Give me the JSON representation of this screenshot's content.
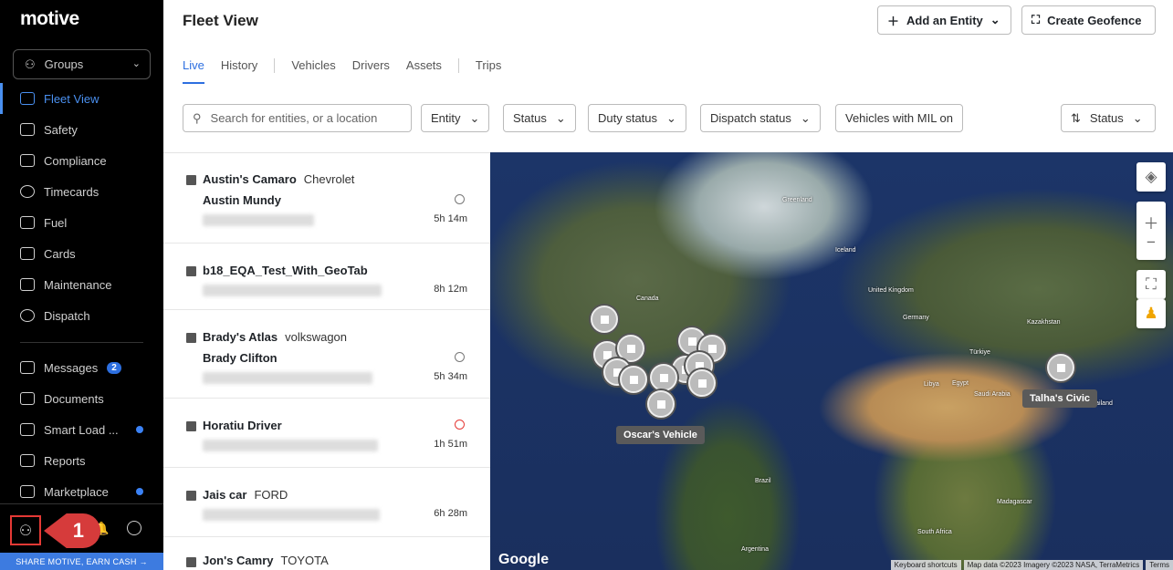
{
  "sidebar": {
    "logo": "motive",
    "groups": "Groups",
    "items": [
      {
        "label": "Fleet View"
      },
      {
        "label": "Safety"
      },
      {
        "label": "Compliance"
      },
      {
        "label": "Timecards"
      },
      {
        "label": "Fuel"
      },
      {
        "label": "Cards"
      },
      {
        "label": "Maintenance"
      },
      {
        "label": "Dispatch"
      }
    ],
    "items2": [
      {
        "label": "Messages",
        "badge": "2"
      },
      {
        "label": "Documents"
      },
      {
        "label": "Smart Load ..."
      },
      {
        "label": "Reports"
      },
      {
        "label": "Marketplace"
      }
    ],
    "callout": "1",
    "share": "SHARE MOTIVE, EARN CASH →"
  },
  "header": {
    "title": "Fleet View",
    "add_entity": "Add an Entity",
    "create_geofence": "Create Geofence"
  },
  "tabs": [
    "Live",
    "History",
    "Vehicles",
    "Drivers",
    "Assets",
    "Trips"
  ],
  "filters": {
    "search_placeholder": "Search for entities, or a location",
    "entity": "Entity",
    "status": "Status",
    "duty": "Duty status",
    "dispatch": "Dispatch status",
    "mil": "Vehicles with MIL on",
    "sort": "Status"
  },
  "list": [
    {
      "name": "Austin's Camaro",
      "make": "Chevrolet",
      "driver": "Austin Mundy",
      "time": "5h 14m"
    },
    {
      "name": "b18_EQA_Test_With_GeoTab",
      "make": "",
      "driver": "",
      "time": "8h 12m"
    },
    {
      "name": "Brady's Atlas",
      "make": "volkswagon",
      "driver": "Brady Clifton",
      "time": "5h 34m"
    },
    {
      "name": "Horatiu Driver",
      "make": "",
      "driver": "",
      "time": "1h 51m"
    },
    {
      "name": "Jais car",
      "make": "FORD",
      "driver": "",
      "time": "6h 28m"
    },
    {
      "name": "Jon's Camry",
      "make": "TOYOTA",
      "driver": "",
      "time": ""
    }
  ],
  "map": {
    "labels": [
      "Greenland",
      "Canada",
      "Iceland",
      "United Kingdom",
      "Germany",
      "Kazakhstan",
      "Türkiye",
      "Libya",
      "Egypt",
      "Saudi Arabia",
      "Thailand",
      "Brazil",
      "Madagascar",
      "South Africa",
      "Argentina"
    ],
    "tooltips": {
      "oscar": "Oscar's Vehicle",
      "talha": "Talha's Civic"
    },
    "google": "Google",
    "attribution": [
      "Keyboard shortcuts",
      "Map data ©2023 Imagery ©2023 NASA, TerraMetrics",
      "Terms"
    ]
  }
}
